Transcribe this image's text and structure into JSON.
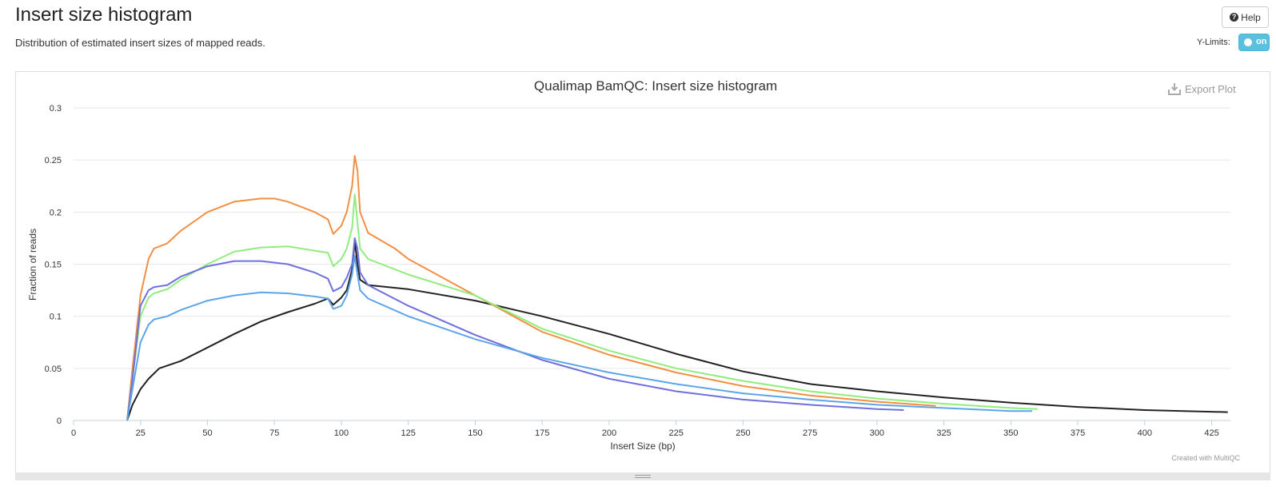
{
  "header": {
    "title": "Insert size histogram",
    "subtitle": "Distribution of estimated insert sizes of mapped reads.",
    "help_label": "Help",
    "ylimits_label": "Y-Limits:",
    "ylimits_toggle": "on"
  },
  "plot": {
    "export_label": "Export Plot",
    "credit": "Created with MultiQC"
  },
  "colors": {
    "orange": "#f28f43",
    "green": "#90ed7d",
    "purple": "#6f6fde",
    "blue": "#5da5e8",
    "black": "#222222",
    "accent": "#5bc0de"
  },
  "chart_data": {
    "type": "line",
    "title": "Qualimap BamQC: Insert size histogram",
    "xlabel": "Insert Size (bp)",
    "ylabel": "Fraction of reads",
    "xlim": [
      0,
      432
    ],
    "ylim": [
      0,
      0.3
    ],
    "xticks": [
      0,
      25,
      50,
      75,
      100,
      125,
      150,
      175,
      200,
      225,
      250,
      275,
      300,
      325,
      350,
      375,
      400,
      425
    ],
    "yticks": [
      0,
      0.05,
      0.1,
      0.15,
      0.2,
      0.25,
      0.3
    ],
    "grid": true,
    "legend": "none",
    "series": [
      {
        "color": "#222222",
        "points": [
          [
            20,
            0
          ],
          [
            22,
            0.015
          ],
          [
            25,
            0.03
          ],
          [
            28,
            0.04
          ],
          [
            32,
            0.05
          ],
          [
            40,
            0.057
          ],
          [
            50,
            0.07
          ],
          [
            60,
            0.083
          ],
          [
            70,
            0.095
          ],
          [
            80,
            0.104
          ],
          [
            90,
            0.112
          ],
          [
            95,
            0.117
          ],
          [
            97,
            0.111
          ],
          [
            100,
            0.118
          ],
          [
            102,
            0.125
          ],
          [
            104,
            0.145
          ],
          [
            105,
            0.172
          ],
          [
            106,
            0.15
          ],
          [
            107,
            0.135
          ],
          [
            110,
            0.13
          ],
          [
            125,
            0.126
          ],
          [
            150,
            0.115
          ],
          [
            175,
            0.1
          ],
          [
            200,
            0.083
          ],
          [
            225,
            0.064
          ],
          [
            250,
            0.047
          ],
          [
            275,
            0.035
          ],
          [
            300,
            0.028
          ],
          [
            325,
            0.022
          ],
          [
            350,
            0.017
          ],
          [
            375,
            0.013
          ],
          [
            400,
            0.01
          ],
          [
            431,
            0.008
          ]
        ]
      },
      {
        "color": "#f28f43",
        "points": [
          [
            20,
            0
          ],
          [
            22,
            0.05
          ],
          [
            25,
            0.12
          ],
          [
            28,
            0.155
          ],
          [
            30,
            0.165
          ],
          [
            35,
            0.17
          ],
          [
            40,
            0.182
          ],
          [
            50,
            0.2
          ],
          [
            60,
            0.21
          ],
          [
            70,
            0.213
          ],
          [
            75,
            0.213
          ],
          [
            80,
            0.21
          ],
          [
            90,
            0.2
          ],
          [
            95,
            0.193
          ],
          [
            97,
            0.179
          ],
          [
            100,
            0.187
          ],
          [
            102,
            0.2
          ],
          [
            104,
            0.225
          ],
          [
            105,
            0.254
          ],
          [
            106,
            0.24
          ],
          [
            107,
            0.2
          ],
          [
            110,
            0.18
          ],
          [
            120,
            0.165
          ],
          [
            125,
            0.155
          ],
          [
            150,
            0.12
          ],
          [
            175,
            0.085
          ],
          [
            200,
            0.063
          ],
          [
            225,
            0.046
          ],
          [
            250,
            0.033
          ],
          [
            275,
            0.024
          ],
          [
            300,
            0.018
          ],
          [
            322,
            0.014
          ]
        ]
      },
      {
        "color": "#90ed7d",
        "points": [
          [
            20,
            0
          ],
          [
            22,
            0.04
          ],
          [
            25,
            0.1
          ],
          [
            28,
            0.118
          ],
          [
            30,
            0.122
          ],
          [
            35,
            0.126
          ],
          [
            40,
            0.135
          ],
          [
            50,
            0.15
          ],
          [
            60,
            0.162
          ],
          [
            70,
            0.166
          ],
          [
            80,
            0.167
          ],
          [
            90,
            0.163
          ],
          [
            95,
            0.161
          ],
          [
            97,
            0.148
          ],
          [
            100,
            0.155
          ],
          [
            102,
            0.165
          ],
          [
            104,
            0.185
          ],
          [
            105,
            0.217
          ],
          [
            106,
            0.19
          ],
          [
            107,
            0.165
          ],
          [
            110,
            0.155
          ],
          [
            125,
            0.14
          ],
          [
            150,
            0.12
          ],
          [
            175,
            0.088
          ],
          [
            200,
            0.067
          ],
          [
            225,
            0.05
          ],
          [
            250,
            0.038
          ],
          [
            275,
            0.028
          ],
          [
            300,
            0.021
          ],
          [
            325,
            0.016
          ],
          [
            350,
            0.012
          ],
          [
            360,
            0.011
          ]
        ]
      },
      {
        "color": "#6f6fde",
        "points": [
          [
            20,
            0
          ],
          [
            22,
            0.04
          ],
          [
            25,
            0.11
          ],
          [
            28,
            0.125
          ],
          [
            30,
            0.128
          ],
          [
            35,
            0.13
          ],
          [
            40,
            0.138
          ],
          [
            50,
            0.148
          ],
          [
            60,
            0.153
          ],
          [
            70,
            0.153
          ],
          [
            80,
            0.15
          ],
          [
            90,
            0.142
          ],
          [
            95,
            0.136
          ],
          [
            97,
            0.124
          ],
          [
            100,
            0.128
          ],
          [
            102,
            0.137
          ],
          [
            104,
            0.15
          ],
          [
            105,
            0.175
          ],
          [
            106,
            0.165
          ],
          [
            107,
            0.142
          ],
          [
            110,
            0.13
          ],
          [
            125,
            0.11
          ],
          [
            150,
            0.082
          ],
          [
            175,
            0.058
          ],
          [
            200,
            0.04
          ],
          [
            225,
            0.028
          ],
          [
            250,
            0.02
          ],
          [
            275,
            0.015
          ],
          [
            300,
            0.011
          ],
          [
            310,
            0.01
          ]
        ]
      },
      {
        "color": "#5da5e8",
        "points": [
          [
            20,
            0
          ],
          [
            22,
            0.03
          ],
          [
            25,
            0.075
          ],
          [
            28,
            0.092
          ],
          [
            30,
            0.097
          ],
          [
            35,
            0.1
          ],
          [
            40,
            0.106
          ],
          [
            50,
            0.115
          ],
          [
            60,
            0.12
          ],
          [
            70,
            0.123
          ],
          [
            80,
            0.122
          ],
          [
            90,
            0.119
          ],
          [
            95,
            0.117
          ],
          [
            97,
            0.107
          ],
          [
            100,
            0.11
          ],
          [
            102,
            0.12
          ],
          [
            104,
            0.14
          ],
          [
            105,
            0.158
          ],
          [
            106,
            0.14
          ],
          [
            107,
            0.125
          ],
          [
            110,
            0.117
          ],
          [
            125,
            0.1
          ],
          [
            150,
            0.078
          ],
          [
            175,
            0.06
          ],
          [
            200,
            0.046
          ],
          [
            225,
            0.035
          ],
          [
            250,
            0.026
          ],
          [
            275,
            0.02
          ],
          [
            300,
            0.015
          ],
          [
            325,
            0.012
          ],
          [
            350,
            0.009
          ],
          [
            358,
            0.009
          ]
        ]
      }
    ]
  }
}
